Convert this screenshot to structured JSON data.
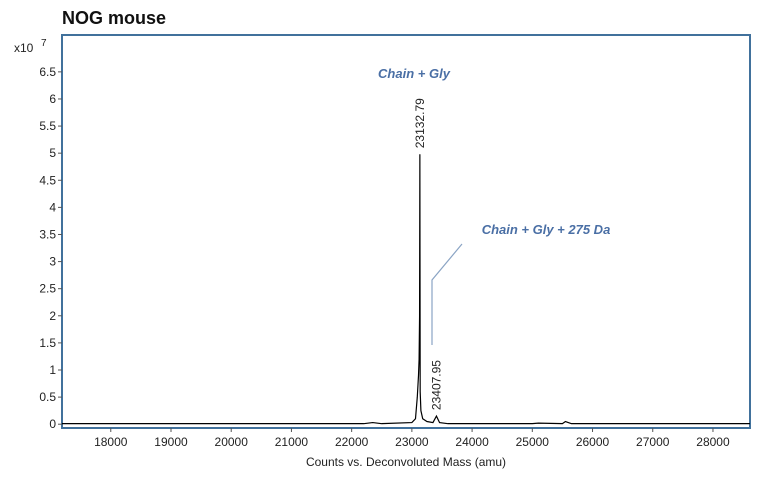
{
  "chart_data": {
    "type": "line",
    "title": "NOG mouse",
    "x_label": "Counts vs. Deconvoluted Mass (amu)",
    "y_multiplier_base": "x10",
    "y_multiplier_exponent": "7",
    "xlim": [
      17190,
      28615
    ],
    "ylim": [
      -0.07,
      7.18
    ],
    "xticks": [
      18000,
      19000,
      20000,
      21000,
      22000,
      23000,
      24000,
      25000,
      26000,
      27000,
      28000
    ],
    "yticks": [
      0,
      0.5,
      1,
      1.5,
      2,
      2.5,
      3,
      3.5,
      4,
      4.5,
      5,
      5.5,
      6,
      6.5
    ],
    "x": [
      17190,
      22200,
      22350,
      22500,
      23000,
      23060,
      23090,
      23110,
      23120,
      23128,
      23132.79,
      23138,
      23150,
      23180,
      23250,
      23350,
      23407.95,
      23460,
      23600,
      25000,
      25100,
      25500,
      25550,
      25650,
      28615
    ],
    "series": [
      {
        "name": "Counts",
        "color": "#000000",
        "values": [
          0.01,
          0.01,
          0.03,
          0.01,
          0.03,
          0.1,
          0.5,
          0.9,
          1.2,
          2.0,
          4.98,
          0.6,
          0.25,
          0.1,
          0.05,
          0.03,
          0.15,
          0.03,
          0.01,
          0.01,
          0.02,
          0.01,
          0.05,
          0.01,
          0.01
        ]
      }
    ],
    "peaks": [
      {
        "x": 23132.79,
        "y": 4.98
      },
      {
        "x": 23407.95,
        "y": 0.15
      }
    ],
    "annotations": [
      {
        "text": "Chain + Gly"
      },
      {
        "text": "Chain + Gly + 275 Da"
      }
    ],
    "frame_color": "#41719c"
  }
}
